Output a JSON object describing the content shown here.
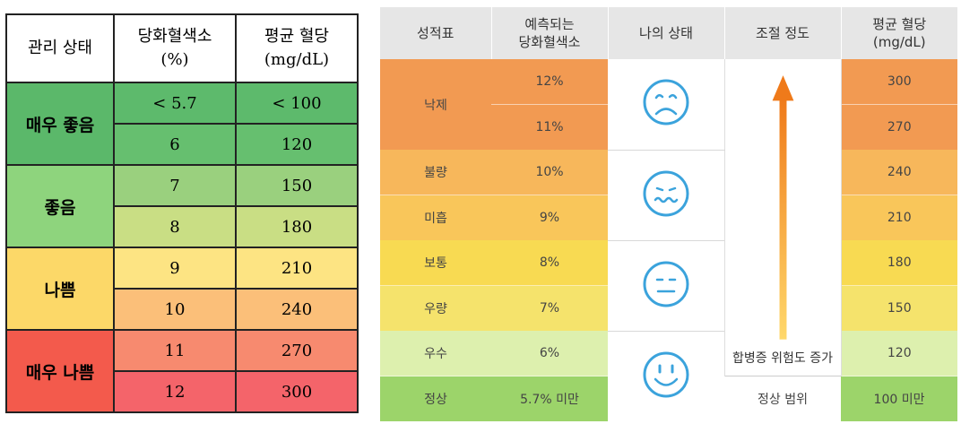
{
  "left_table": {
    "headers": [
      "관리 상태",
      "당화혈색소\n(%)",
      "평균 혈당\n(mg/dL)"
    ],
    "groups": [
      {
        "label": "매우 좋음",
        "color": "#5bb86a",
        "rows": [
          {
            "a1c": "< 5.7",
            "glucose": "< 100",
            "color": "#5dba6c"
          },
          {
            "a1c": "6",
            "glucose": "120",
            "color": "#66bf6f"
          }
        ]
      },
      {
        "label": "좋음",
        "color": "#8ed47d",
        "rows": [
          {
            "a1c": "7",
            "glucose": "150",
            "color": "#9ad07e"
          },
          {
            "a1c": "8",
            "glucose": "180",
            "color": "#c9de84"
          }
        ]
      },
      {
        "label": "나쁨",
        "color": "#fcd868",
        "rows": [
          {
            "a1c": "9",
            "glucose": "210",
            "color": "#fde483"
          },
          {
            "a1c": "10",
            "glucose": "240",
            "color": "#fbbf79"
          }
        ]
      },
      {
        "label": "매우 나쁨",
        "color": "#f35a4c",
        "rows": [
          {
            "a1c": "11",
            "glucose": "270",
            "color": "#f78a6f"
          },
          {
            "a1c": "12",
            "glucose": "300",
            "color": "#f4646a"
          }
        ]
      }
    ]
  },
  "right_table": {
    "headers": [
      "성적표",
      "예측되는\n당화혈색소",
      "나의 상태",
      "조절 정도",
      "평균 혈당\n(mg/dL)"
    ],
    "rows": [
      {
        "grade": "낙제",
        "a1c": "12%",
        "glucose": "300",
        "color": "#f29a52"
      },
      {
        "grade": "",
        "a1c": "11%",
        "glucose": "270",
        "color": "#f29a52"
      },
      {
        "grade": "불량",
        "a1c": "10%",
        "glucose": "240",
        "color": "#f7b75b"
      },
      {
        "grade": "미흡",
        "a1c": "9%",
        "glucose": "210",
        "color": "#f9c65a"
      },
      {
        "grade": "보통",
        "a1c": "8%",
        "glucose": "180",
        "color": "#f8da52"
      },
      {
        "grade": "우량",
        "a1c": "7%",
        "glucose": "150",
        "color": "#f5e36c"
      },
      {
        "grade": "우수",
        "a1c": "6%",
        "glucose": "120",
        "color": "#ddf0ae"
      },
      {
        "grade": "정상",
        "a1c": "5.7% 미만",
        "glucose": "100 미만",
        "color": "#9cd46a"
      }
    ],
    "faces": [
      "sad-face-icon",
      "worried-face-icon",
      "neutral-face-icon",
      "happy-face-icon"
    ],
    "risk_label": "합병증 위험도 증가",
    "normal_range": "정상 범위",
    "arrow_color": "#ef7a1a",
    "face_color": "#3ba3dc"
  }
}
